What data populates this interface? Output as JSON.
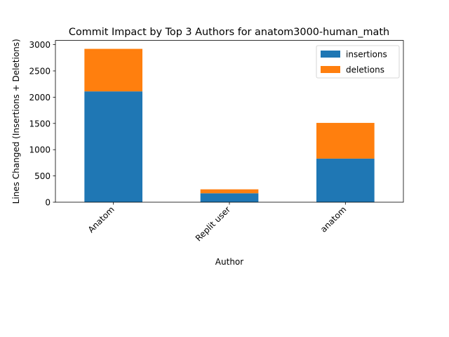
{
  "chart_data": {
    "type": "bar",
    "stacked": true,
    "title": "Commit Impact by Top 3 Authors for anatom3000-human_math",
    "xlabel": "Author",
    "ylabel": "Lines Changed (Insertions + Deletions)",
    "categories": [
      "Anatom",
      "Replit user",
      "anatom"
    ],
    "series": [
      {
        "name": "insertions",
        "color": "#1f77b4",
        "values": [
          2110,
          170,
          830
        ]
      },
      {
        "name": "deletions",
        "color": "#ff7f0e",
        "values": [
          810,
          75,
          680
        ]
      }
    ],
    "ylim": [
      0,
      3080
    ],
    "yticks": [
      0,
      500,
      1000,
      1500,
      2000,
      2500,
      3000
    ],
    "grid": false,
    "legend_position": "top-right",
    "xtick_rotation": 45
  }
}
